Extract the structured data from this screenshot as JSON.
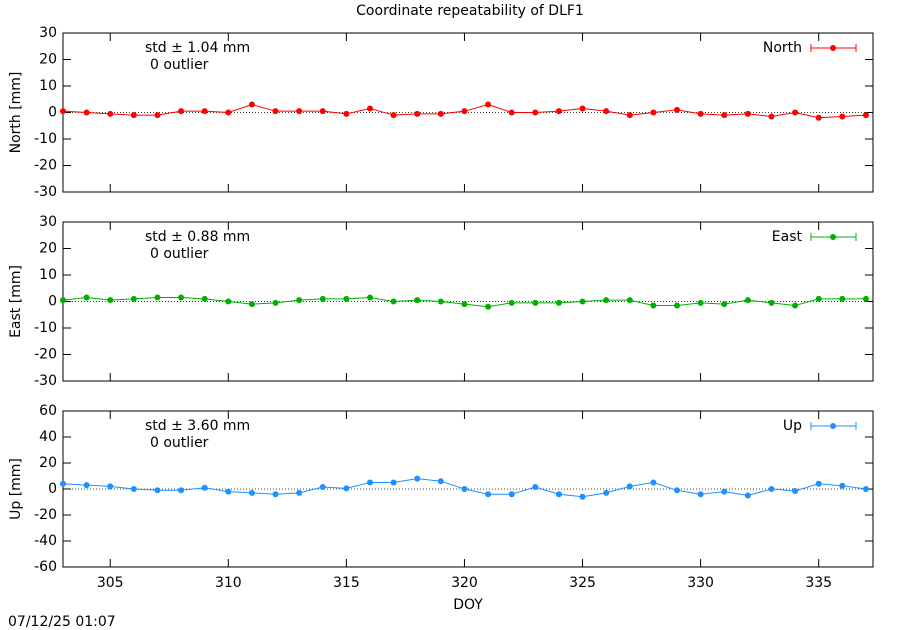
{
  "title": "Coordinate repeatability of DLF1",
  "timestamp": "07/12/25 01:07",
  "chart_data": [
    {
      "type": "line",
      "ylabel": "North [mm]",
      "show_xtick_labels": false,
      "x": [
        303,
        304,
        305,
        306,
        307,
        308,
        309,
        310,
        311,
        312,
        313,
        314,
        315,
        316,
        317,
        318,
        319,
        320,
        321,
        322,
        323,
        324,
        325,
        326,
        327,
        328,
        329,
        330,
        331,
        332,
        333,
        334,
        335,
        336,
        337
      ],
      "xlim": [
        303,
        337.3
      ],
      "xticks": [
        305,
        310,
        315,
        320,
        325,
        330,
        335
      ],
      "ylim": [
        -30,
        30
      ],
      "yticks": [
        -30,
        -20,
        -10,
        0,
        10,
        20,
        30
      ],
      "legend": "top-right",
      "annotations": [
        {
          "text": "std ± 1.04 mm",
          "color": "#ff0000"
        },
        {
          "text": "0 outlier",
          "color": "#000000"
        }
      ],
      "series": [
        {
          "name": "North",
          "color": "#ff0000",
          "values": [
            0.5,
            0,
            -0.5,
            -1,
            -1,
            0.5,
            0.5,
            0,
            3,
            0.5,
            0.5,
            0.5,
            -0.5,
            1.5,
            -1,
            -0.5,
            -0.5,
            0.5,
            3,
            0,
            0,
            0.5,
            1.5,
            0.5,
            -1,
            0,
            1,
            -0.5,
            -1,
            -0.5,
            -1.5,
            0,
            -2,
            -1.5,
            -1
          ]
        }
      ]
    },
    {
      "type": "line",
      "ylabel": "East [mm]",
      "show_xtick_labels": false,
      "x": [
        303,
        304,
        305,
        306,
        307,
        308,
        309,
        310,
        311,
        312,
        313,
        314,
        315,
        316,
        317,
        318,
        319,
        320,
        321,
        322,
        323,
        324,
        325,
        326,
        327,
        328,
        329,
        330,
        331,
        332,
        333,
        334,
        335,
        336,
        337
      ],
      "xlim": [
        303,
        337.3
      ],
      "xticks": [
        305,
        310,
        315,
        320,
        325,
        330,
        335
      ],
      "ylim": [
        -30,
        30
      ],
      "yticks": [
        -30,
        -20,
        -10,
        0,
        10,
        20,
        30
      ],
      "legend": "top-right",
      "annotations": [
        {
          "text": "std ± 0.88 mm",
          "color": "#00b000"
        },
        {
          "text": "0 outlier",
          "color": "#000000"
        }
      ],
      "series": [
        {
          "name": "East",
          "color": "#00b000",
          "values": [
            0.5,
            1.5,
            0.5,
            1,
            1.5,
            1.5,
            1,
            0,
            -1,
            -0.5,
            0.5,
            1,
            1,
            1.5,
            0,
            0.5,
            0,
            -1,
            -2,
            -0.5,
            -0.5,
            -0.5,
            0,
            0.5,
            0.5,
            -1.5,
            -1.5,
            -0.5,
            -1,
            0.5,
            -0.5,
            -1.5,
            1,
            1,
            1
          ]
        }
      ]
    },
    {
      "type": "line",
      "ylabel": "Up [mm]",
      "xlabel": "DOY",
      "show_xtick_labels": true,
      "x": [
        303,
        304,
        305,
        306,
        307,
        308,
        309,
        310,
        311,
        312,
        313,
        314,
        315,
        316,
        317,
        318,
        319,
        320,
        321,
        322,
        323,
        324,
        325,
        326,
        327,
        328,
        329,
        330,
        331,
        332,
        333,
        334,
        335,
        336,
        337
      ],
      "xlim": [
        303,
        337.3
      ],
      "xticks": [
        305,
        310,
        315,
        320,
        325,
        330,
        335
      ],
      "ylim": [
        -60,
        60
      ],
      "yticks": [
        -60,
        -40,
        -20,
        0,
        20,
        40,
        60
      ],
      "legend": "top-right",
      "annotations": [
        {
          "text": "std ± 3.60 mm",
          "color": "#1e90ff"
        },
        {
          "text": "0 outlier",
          "color": "#000000"
        }
      ],
      "series": [
        {
          "name": "Up",
          "color": "#1e90ff",
          "values": [
            4,
            3,
            2,
            0,
            -1,
            -1,
            1,
            -2,
            -3,
            -4,
            -3,
            1.5,
            0.5,
            5,
            5,
            8,
            6,
            0,
            -4,
            -4,
            1.5,
            -4,
            -6,
            -3,
            2,
            5,
            -1,
            -4,
            -2,
            -5,
            0,
            -1.5,
            4,
            2.5,
            0
          ]
        }
      ]
    }
  ]
}
